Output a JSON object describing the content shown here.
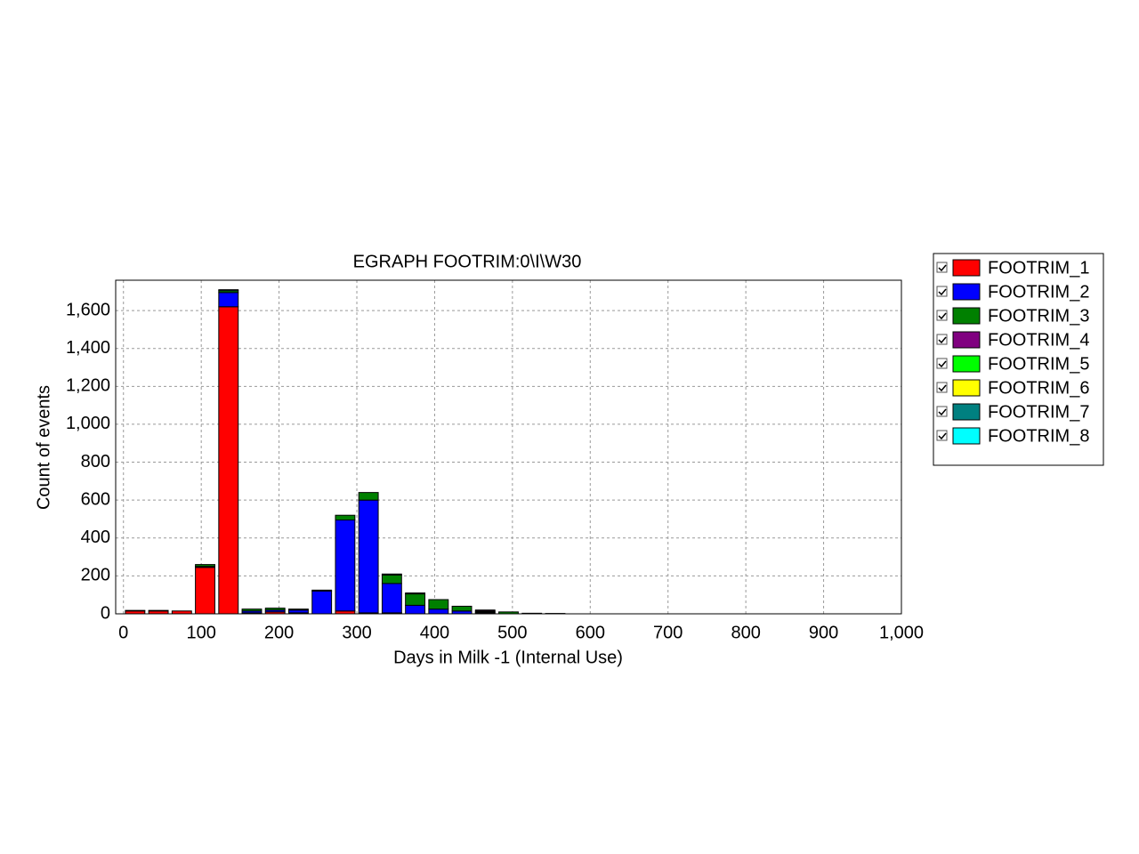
{
  "chart_data": {
    "type": "bar",
    "stacked": true,
    "title": "EGRAPH FOOTRIM:0\\I\\W30",
    "x_label": "Days in Milk -1 (Internal Use)",
    "y_label": "Count of events",
    "x": [
      15,
      45,
      75,
      105,
      135,
      165,
      195,
      225,
      255,
      285,
      315,
      345,
      375,
      405,
      435,
      465,
      495,
      525,
      555
    ],
    "series": [
      {
        "name": "FOOTRIM_1",
        "color": "#ff0000",
        "values": [
          15,
          15,
          15,
          245,
          1620,
          5,
          10,
          5,
          0,
          15,
          5,
          5,
          0,
          0,
          0,
          5,
          0,
          0,
          0
        ]
      },
      {
        "name": "FOOTRIM_2",
        "color": "#0000ff",
        "values": [
          0,
          0,
          0,
          5,
          75,
          10,
          10,
          15,
          120,
          480,
          595,
          155,
          45,
          25,
          15,
          5,
          0,
          0,
          0
        ]
      },
      {
        "name": "FOOTRIM_3",
        "color": "#008000",
        "values": [
          0,
          0,
          0,
          10,
          10,
          10,
          10,
          5,
          5,
          25,
          40,
          45,
          60,
          50,
          25,
          5,
          10,
          3,
          2
        ]
      },
      {
        "name": "FOOTRIM_4",
        "color": "#800080",
        "values": [
          3,
          3,
          0,
          0,
          0,
          0,
          0,
          0,
          0,
          0,
          0,
          0,
          0,
          0,
          0,
          5,
          0,
          0,
          0
        ]
      },
      {
        "name": "FOOTRIM_5",
        "color": "#00ff00",
        "values": [
          0,
          0,
          0,
          0,
          0,
          0,
          0,
          0,
          0,
          0,
          0,
          0,
          0,
          0,
          0,
          0,
          0,
          0,
          0
        ]
      },
      {
        "name": "FOOTRIM_6",
        "color": "#ffff00",
        "values": [
          0,
          0,
          0,
          0,
          0,
          0,
          0,
          0,
          0,
          0,
          0,
          0,
          5,
          0,
          0,
          0,
          0,
          0,
          0
        ]
      },
      {
        "name": "FOOTRIM_7",
        "color": "#008080",
        "values": [
          0,
          0,
          0,
          0,
          0,
          0,
          0,
          0,
          0,
          0,
          0,
          0,
          0,
          0,
          0,
          0,
          0,
          0,
          0
        ]
      },
      {
        "name": "FOOTRIM_8",
        "color": "#00ffff",
        "values": [
          0,
          0,
          0,
          0,
          5,
          0,
          0,
          0,
          0,
          0,
          0,
          5,
          0,
          0,
          0,
          0,
          0,
          0,
          0
        ]
      }
    ],
    "xlim": [
      -10,
      1000
    ],
    "xticks": [
      0,
      100,
      200,
      300,
      400,
      500,
      600,
      700,
      800,
      900,
      {
        "value": 1000,
        "label": "1,000"
      }
    ],
    "ylim": [
      0,
      1760
    ],
    "yticks": [
      0,
      200,
      400,
      600,
      800,
      {
        "value": 1000,
        "label": "1,000"
      },
      {
        "value": 1200,
        "label": "1,200"
      },
      {
        "value": 1400,
        "label": "1,400"
      },
      {
        "value": 1600,
        "label": "1,600"
      }
    ],
    "grid": true,
    "legend": "right"
  }
}
